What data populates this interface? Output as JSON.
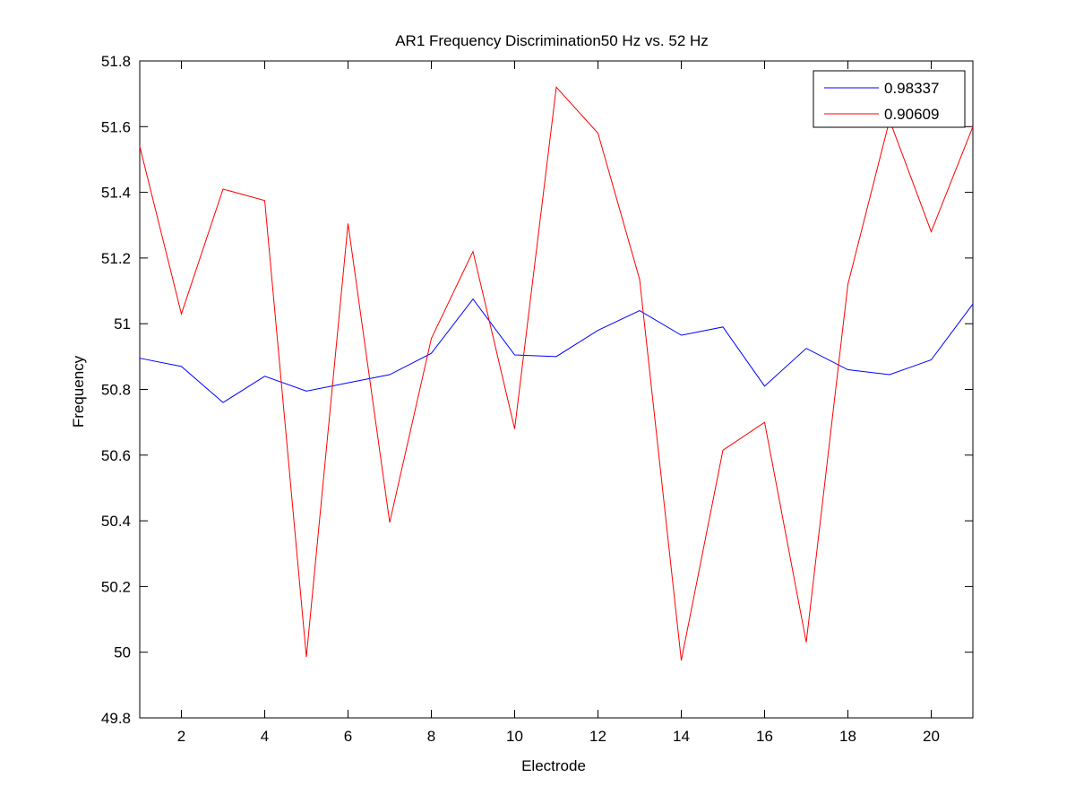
{
  "chart_data": {
    "type": "line",
    "title": "AR1 Frequency Discrimination50 Hz vs. 52 Hz",
    "xlabel": "Electrode",
    "ylabel": "Frequency",
    "xlim": [
      1,
      21
    ],
    "ylim": [
      49.8,
      51.8
    ],
    "xticks": [
      2,
      4,
      6,
      8,
      10,
      12,
      14,
      16,
      18,
      20
    ],
    "xtick_labels": [
      "2",
      "4",
      "6",
      "8",
      "10",
      "12",
      "14",
      "16",
      "18",
      "20"
    ],
    "yticks": [
      49.8,
      50,
      50.2,
      50.4,
      50.6,
      50.8,
      51,
      51.2,
      51.4,
      51.6,
      51.8
    ],
    "ytick_labels": [
      "49.8",
      "50",
      "50.2",
      "50.4",
      "50.6",
      "50.8",
      "51",
      "51.2",
      "51.4",
      "51.6",
      "51.8"
    ],
    "grid": false,
    "legend_position": "top-right",
    "x": [
      1,
      2,
      3,
      4,
      5,
      6,
      7,
      8,
      9,
      10,
      11,
      12,
      13,
      14,
      15,
      16,
      17,
      18,
      19,
      20,
      21
    ],
    "series": [
      {
        "name": "0.98337",
        "color": "#0000ff",
        "values": [
          50.895,
          50.87,
          50.76,
          50.84,
          50.795,
          50.82,
          50.845,
          50.91,
          51.075,
          50.905,
          50.9,
          50.98,
          51.04,
          50.965,
          50.99,
          50.81,
          50.925,
          50.86,
          50.845,
          50.89,
          51.06
        ]
      },
      {
        "name": "0.90609",
        "color": "#ff0000",
        "values": [
          51.54,
          51.03,
          51.41,
          51.375,
          49.985,
          51.305,
          50.395,
          50.955,
          51.22,
          50.68,
          51.72,
          51.58,
          51.135,
          49.975,
          50.615,
          50.7,
          50.03,
          51.12,
          51.62,
          51.28,
          51.6
        ]
      }
    ]
  }
}
